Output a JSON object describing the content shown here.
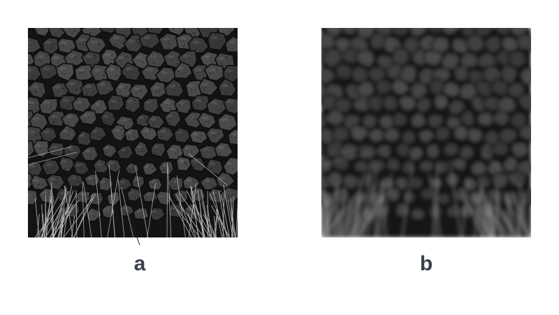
{
  "panels": [
    {
      "id": "a",
      "label": "a",
      "style": "sharp"
    },
    {
      "id": "b",
      "label": "b",
      "style": "blurred"
    }
  ],
  "colors": {
    "label": "#3a3f4b",
    "background": "#ffffff",
    "plate_fill": "#4a4a4a",
    "crevice": "#161616"
  }
}
